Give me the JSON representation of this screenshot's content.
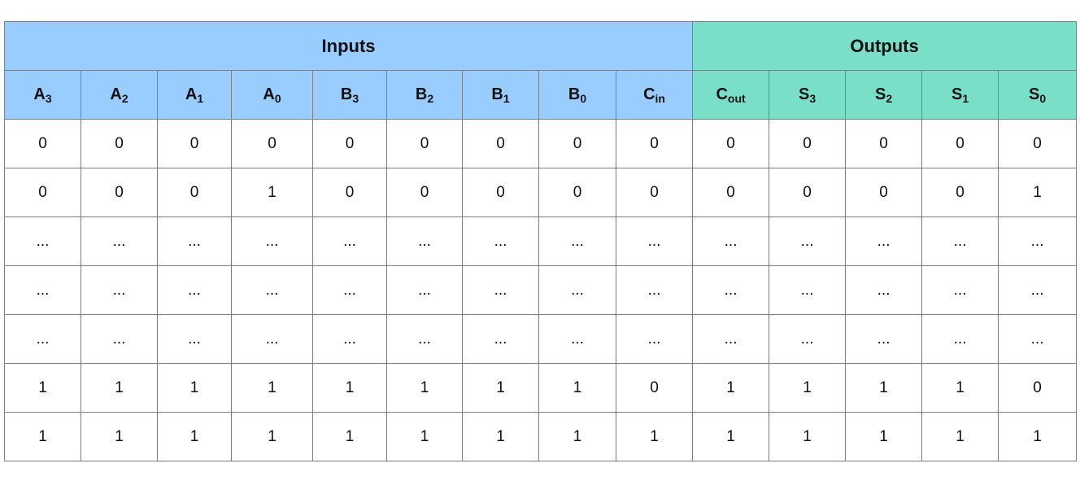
{
  "colors": {
    "inputs_header": "#99ccff",
    "outputs_header": "#79dfc8",
    "grid": "#7f7f7f"
  },
  "groups": {
    "inputs": "Inputs",
    "outputs": "Outputs"
  },
  "columns": [
    {
      "main": "A",
      "sub": "3"
    },
    {
      "main": "A",
      "sub": "2"
    },
    {
      "main": "A",
      "sub": "1"
    },
    {
      "main": "A",
      "sub": "0"
    },
    {
      "main": "B",
      "sub": "3"
    },
    {
      "main": "B",
      "sub": "2"
    },
    {
      "main": "B",
      "sub": "1"
    },
    {
      "main": "B",
      "sub": "0"
    },
    {
      "main": "C",
      "sub": "in"
    },
    {
      "main": "C",
      "sub": "out"
    },
    {
      "main": "S",
      "sub": "3"
    },
    {
      "main": "S",
      "sub": "2"
    },
    {
      "main": "S",
      "sub": "1"
    },
    {
      "main": "S",
      "sub": "0"
    }
  ],
  "rows": [
    [
      "0",
      "0",
      "0",
      "0",
      "0",
      "0",
      "0",
      "0",
      "0",
      "0",
      "0",
      "0",
      "0",
      "0"
    ],
    [
      "0",
      "0",
      "0",
      "1",
      "0",
      "0",
      "0",
      "0",
      "0",
      "0",
      "0",
      "0",
      "0",
      "1"
    ],
    [
      "...",
      "...",
      "...",
      "...",
      "...",
      "...",
      "...",
      "...",
      "...",
      "...",
      "...",
      "...",
      "...",
      "..."
    ],
    [
      "...",
      "...",
      "...",
      "...",
      "...",
      "...",
      "...",
      "...",
      "...",
      "...",
      "...",
      "...",
      "...",
      "..."
    ],
    [
      "...",
      "...",
      "...",
      "...",
      "...",
      "...",
      "...",
      "...",
      "...",
      "...",
      "...",
      "...",
      "...",
      "..."
    ],
    [
      "1",
      "1",
      "1",
      "1",
      "1",
      "1",
      "1",
      "1",
      "0",
      "1",
      "1",
      "1",
      "1",
      "0"
    ],
    [
      "1",
      "1",
      "1",
      "1",
      "1",
      "1",
      "1",
      "1",
      "1",
      "1",
      "1",
      "1",
      "1",
      "1"
    ]
  ]
}
